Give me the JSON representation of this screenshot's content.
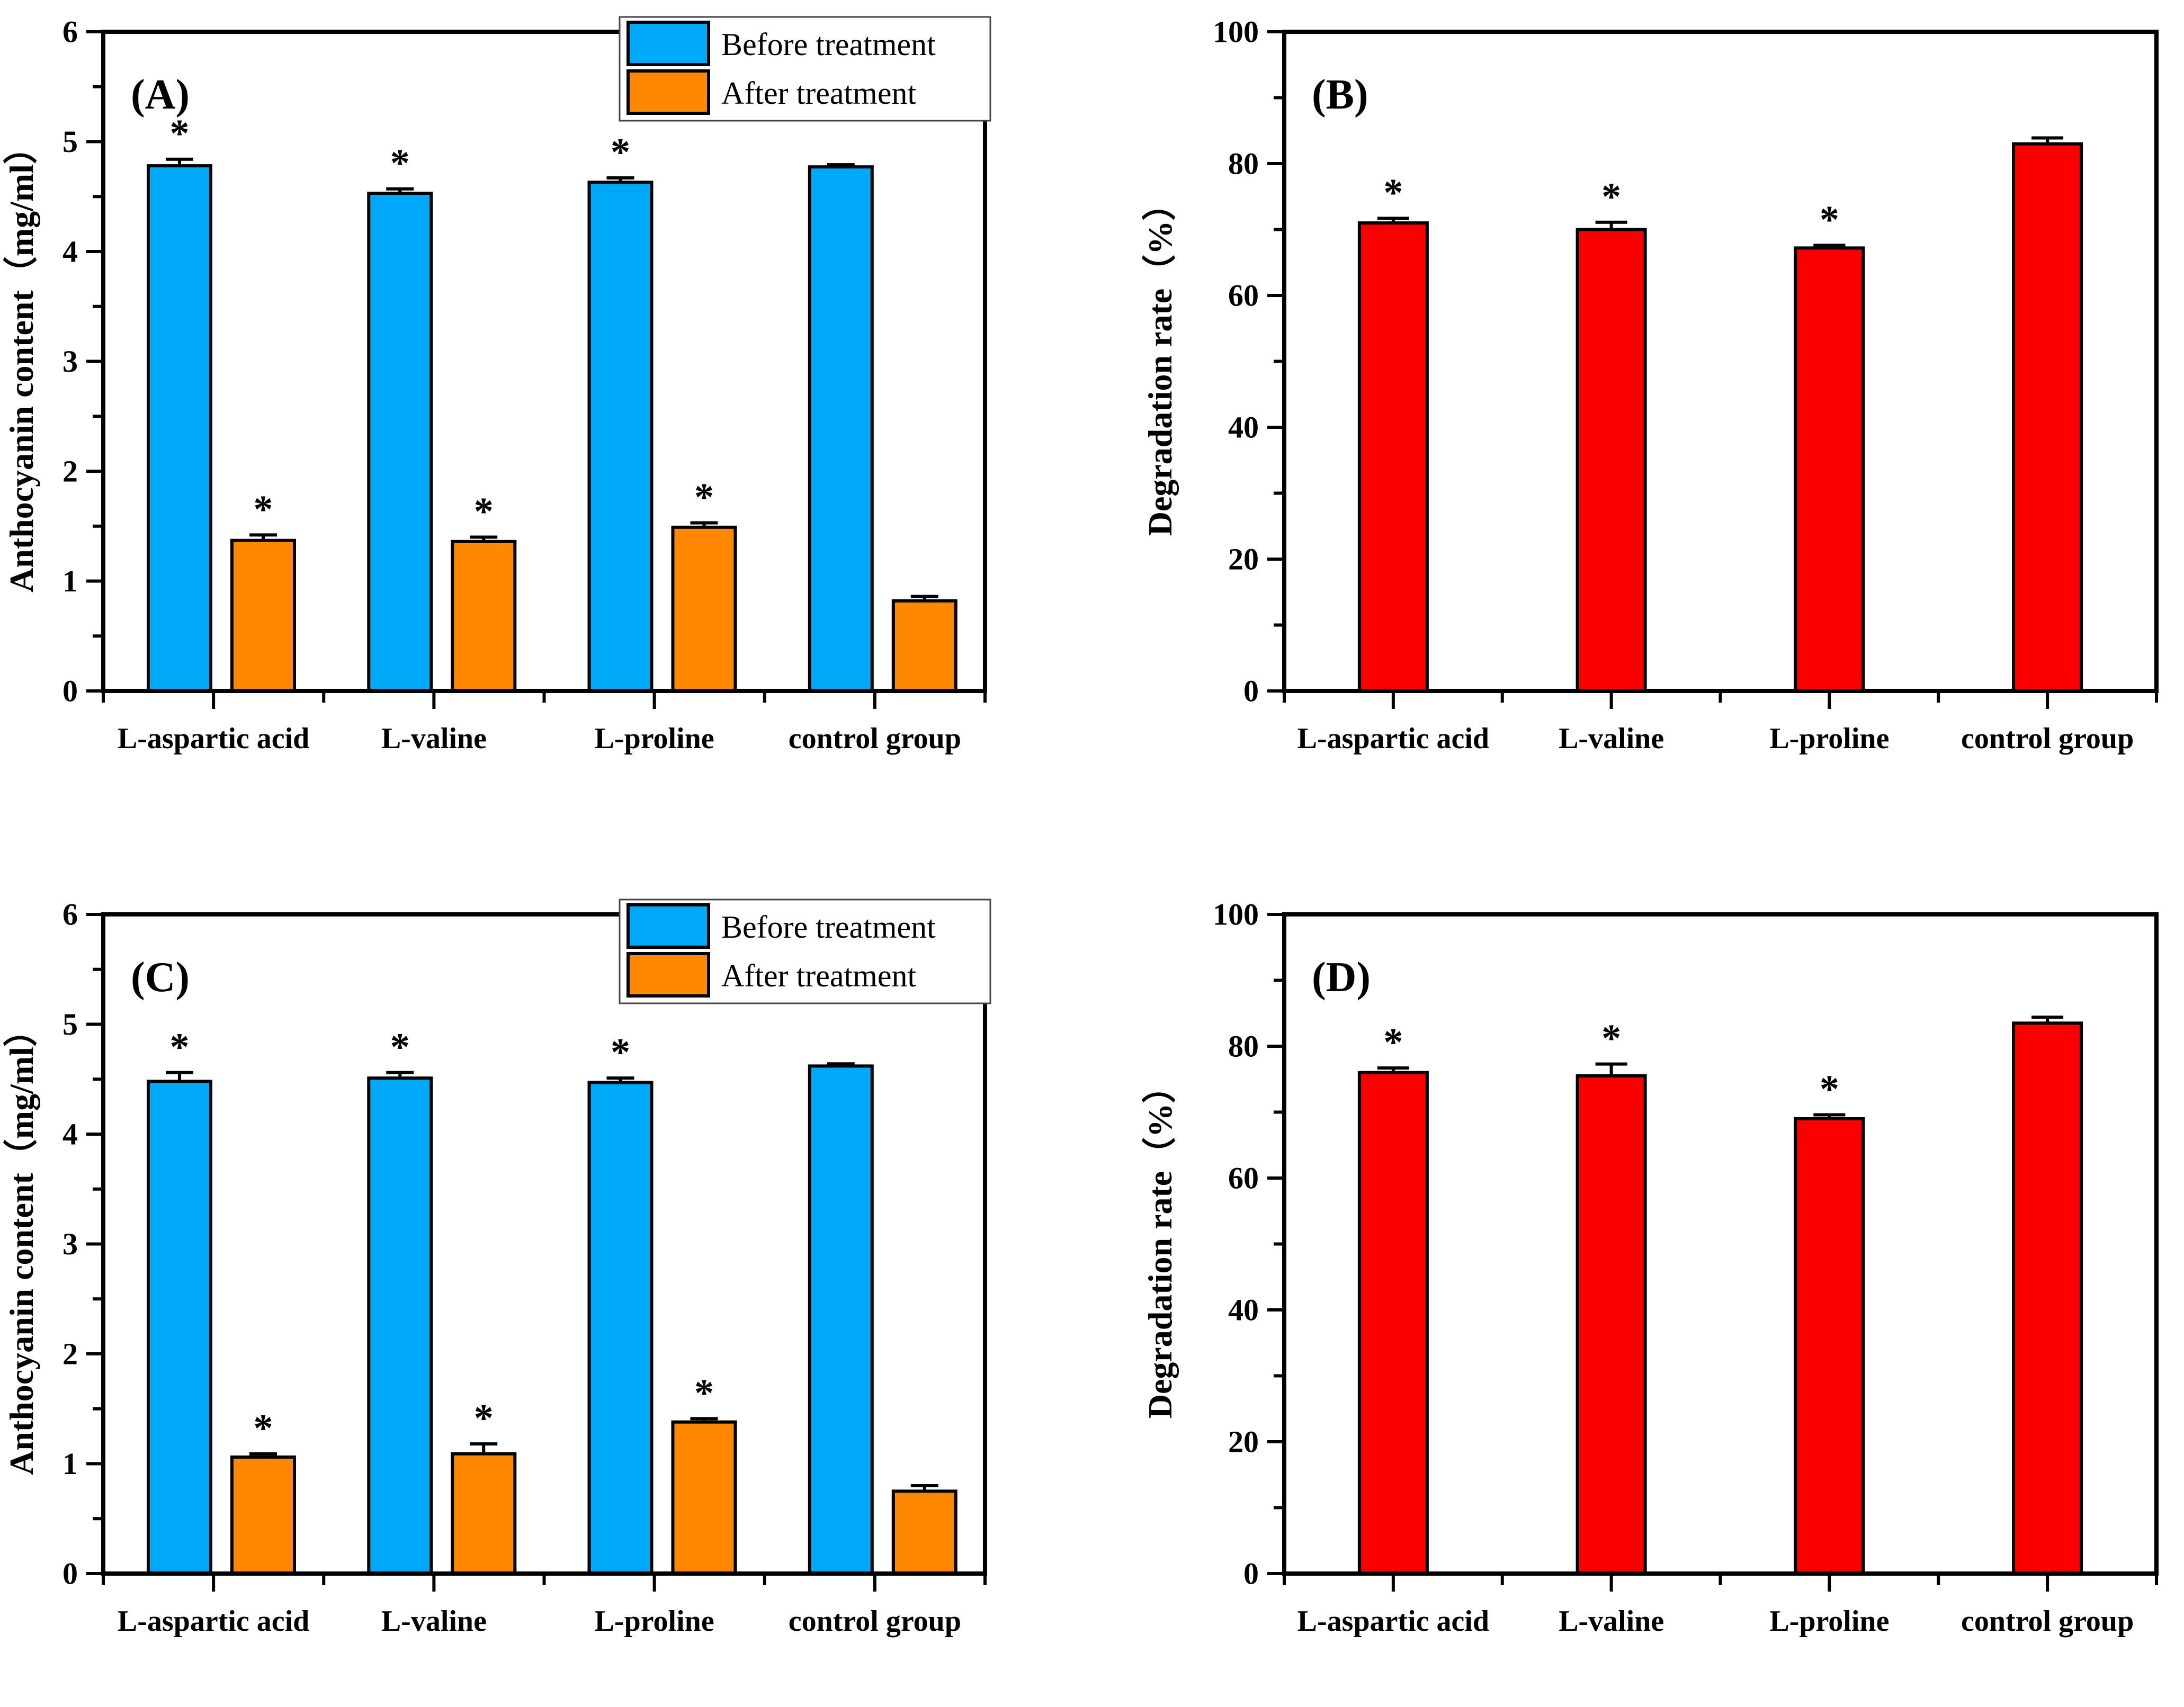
{
  "figure": {
    "background": "#FFFFFF",
    "axis_color": "#000000",
    "significance_marker": "*"
  },
  "legend": {
    "items": [
      "Before treatment",
      "After treatment"
    ]
  },
  "chart_data": [
    {
      "panel": "A",
      "letter": "(A)",
      "type": "bar",
      "ylabel": "Anthocyanin content（mg/ml）",
      "xlabel": "",
      "ylim": [
        0,
        6
      ],
      "ytick_step": 1,
      "yminor_step": 0.5,
      "yticks": [
        "0",
        "1",
        "2",
        "3",
        "4",
        "5",
        "6"
      ],
      "categories": [
        "L-aspartic acid",
        "L-valine",
        "L-proline",
        "control group"
      ],
      "grid": false,
      "legend_visible": true,
      "legend_position": "top-right",
      "series": [
        {
          "name": "Before treatment",
          "color": "#00A8F8",
          "values": [
            4.78,
            4.53,
            4.63,
            4.77
          ],
          "errors": [
            0.06,
            0.04,
            0.04,
            0.02
          ],
          "asterisks": [
            true,
            true,
            true,
            false
          ]
        },
        {
          "name": "After treatment",
          "color": "#FF8800",
          "values": [
            1.37,
            1.36,
            1.49,
            0.82
          ],
          "errors": [
            0.05,
            0.04,
            0.04,
            0.04
          ],
          "asterisks": [
            true,
            true,
            true,
            false
          ]
        }
      ]
    },
    {
      "panel": "B",
      "letter": "(B)",
      "type": "bar",
      "ylabel": "Degradation rate（%）",
      "xlabel": "",
      "ylim": [
        0,
        100
      ],
      "ytick_step": 20,
      "yminor_step": 10,
      "yticks": [
        "0",
        "20",
        "40",
        "60",
        "80",
        "100"
      ],
      "categories": [
        "L-aspartic acid",
        "L-valine",
        "L-proline",
        "control group"
      ],
      "grid": false,
      "legend_visible": false,
      "series": [
        {
          "name": "Degradation rate",
          "color": "#FA0000",
          "values": [
            71,
            70,
            67.2,
            83
          ],
          "errors": [
            0.7,
            1.1,
            0.4,
            0.9
          ],
          "asterisks": [
            true,
            true,
            true,
            false
          ]
        }
      ]
    },
    {
      "panel": "C",
      "letter": "(C)",
      "type": "bar",
      "ylabel": "Anthocyanin content（mg/ml）",
      "xlabel": "",
      "ylim": [
        0,
        6
      ],
      "ytick_step": 1,
      "yminor_step": 0.5,
      "yticks": [
        "0",
        "1",
        "2",
        "3",
        "4",
        "5",
        "6"
      ],
      "categories": [
        "L-aspartic acid",
        "L-valine",
        "L-proline",
        "control group"
      ],
      "grid": false,
      "legend_visible": true,
      "legend_position": "top-right",
      "series": [
        {
          "name": "Before treatment",
          "color": "#00A8F8",
          "values": [
            4.48,
            4.51,
            4.47,
            4.62
          ],
          "errors": [
            0.08,
            0.05,
            0.04,
            0.02
          ],
          "asterisks": [
            true,
            true,
            true,
            false
          ]
        },
        {
          "name": "After treatment",
          "color": "#FF8800",
          "values": [
            1.06,
            1.09,
            1.38,
            0.75
          ],
          "errors": [
            0.03,
            0.09,
            0.03,
            0.05
          ],
          "asterisks": [
            true,
            true,
            true,
            false
          ]
        }
      ]
    },
    {
      "panel": "D",
      "letter": "(D)",
      "type": "bar",
      "ylabel": "Degradation rate（%）",
      "xlabel": "",
      "ylim": [
        0,
        100
      ],
      "ytick_step": 20,
      "yminor_step": 10,
      "yticks": [
        "0",
        "20",
        "40",
        "60",
        "80",
        "100"
      ],
      "categories": [
        "L-aspartic acid",
        "L-valine",
        "L-proline",
        "control group"
      ],
      "grid": false,
      "legend_visible": false,
      "series": [
        {
          "name": "Degradation rate",
          "color": "#FA0000",
          "values": [
            76,
            75.5,
            69,
            83.5
          ],
          "errors": [
            0.7,
            1.8,
            0.6,
            0.9
          ],
          "asterisks": [
            true,
            true,
            true,
            false
          ]
        }
      ]
    }
  ]
}
